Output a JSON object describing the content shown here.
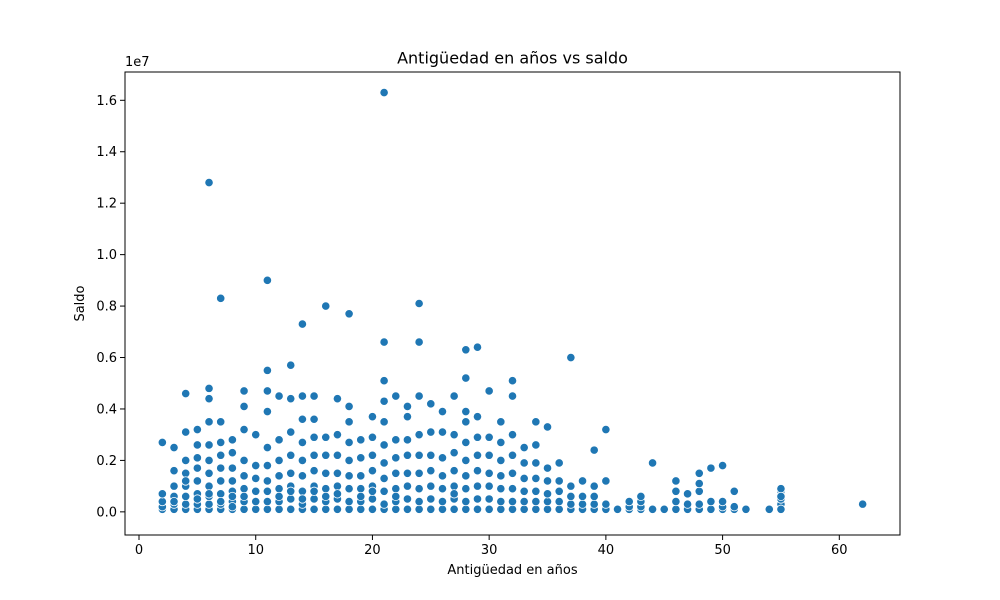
{
  "chart_data": {
    "type": "scatter",
    "title": "Antigüedad en años vs saldo",
    "xlabel": "Antigüedad en años",
    "ylabel": "Saldo",
    "y_offset_label": "1e7",
    "xlim": [
      -1.2,
      65.2
    ],
    "ylim": [
      -0.09,
      1.71
    ],
    "x_ticks": [
      0,
      10,
      20,
      30,
      40,
      50,
      60
    ],
    "x_tick_labels": [
      "0",
      "10",
      "20",
      "30",
      "40",
      "50",
      "60"
    ],
    "y_ticks": [
      0.0,
      0.2,
      0.4,
      0.6,
      0.8,
      1.0,
      1.2,
      1.4,
      1.6
    ],
    "y_tick_labels": [
      "0.0",
      "0.2",
      "0.4",
      "0.6",
      "0.8",
      "1.0",
      "1.2",
      "1.4",
      "1.6"
    ],
    "grid": false,
    "legend": "none",
    "point_color": "#1f77b4",
    "point_edge_color": "#ffffff",
    "series": [
      {
        "x": [
          2,
          2,
          2,
          2,
          2,
          3,
          3,
          3,
          3,
          3,
          3,
          3,
          4,
          4,
          4,
          4,
          4,
          4,
          4,
          4,
          4,
          5,
          5,
          5,
          5,
          5,
          5,
          5,
          5,
          5,
          6,
          6,
          6,
          6,
          6,
          6,
          6,
          6,
          6,
          6,
          6,
          6,
          7,
          7,
          7,
          7,
          7,
          7,
          7,
          7,
          7,
          7,
          8,
          8,
          8,
          8,
          8,
          8,
          8,
          8,
          8,
          9,
          9,
          9,
          9,
          9,
          9,
          9,
          9,
          9,
          10,
          10,
          10,
          10,
          10,
          10,
          11,
          11,
          11,
          11,
          11,
          11,
          11,
          11,
          11,
          11,
          12,
          12,
          12,
          12,
          12,
          12,
          12,
          12,
          13,
          13,
          13,
          13,
          13,
          13,
          13,
          13,
          13,
          14,
          14,
          14,
          14,
          14,
          14,
          14,
          14,
          14,
          14,
          15,
          15,
          15,
          15,
          15,
          15,
          15,
          15,
          15,
          16,
          16,
          16,
          16,
          16,
          16,
          16,
          16,
          17,
          17,
          17,
          17,
          17,
          17,
          17,
          17,
          18,
          18,
          18,
          18,
          18,
          18,
          18,
          18,
          18,
          19,
          19,
          19,
          19,
          19,
          19,
          19,
          20,
          20,
          20,
          20,
          20,
          20,
          20,
          20,
          21,
          21,
          21,
          21,
          21,
          21,
          21,
          21,
          21,
          21,
          21,
          22,
          22,
          22,
          22,
          22,
          22,
          22,
          22,
          23,
          23,
          23,
          23,
          23,
          23,
          23,
          23,
          24,
          24,
          24,
          24,
          24,
          24,
          24,
          24,
          24,
          25,
          25,
          25,
          25,
          25,
          25,
          25,
          26,
          26,
          26,
          26,
          26,
          26,
          26,
          27,
          27,
          27,
          27,
          27,
          27,
          27,
          27,
          28,
          28,
          28,
          28,
          28,
          28,
          28,
          28,
          28,
          28,
          29,
          29,
          29,
          29,
          29,
          29,
          29,
          29,
          30,
          30,
          30,
          30,
          30,
          30,
          30,
          31,
          31,
          31,
          31,
          31,
          31,
          31,
          32,
          32,
          32,
          32,
          32,
          32,
          32,
          32,
          33,
          33,
          33,
          33,
          33,
          33,
          34,
          34,
          34,
          34,
          34,
          34,
          34,
          35,
          35,
          35,
          35,
          35,
          35,
          36,
          36,
          36,
          36,
          36,
          37,
          37,
          37,
          37,
          37,
          38,
          38,
          38,
          38,
          39,
          39,
          39,
          39,
          39,
          40,
          40,
          40,
          40,
          41,
          42,
          42,
          42,
          43,
          43,
          43,
          43,
          44,
          44,
          45,
          46,
          46,
          46,
          46,
          47,
          47,
          47,
          48,
          48,
          48,
          48,
          48,
          49,
          49,
          49,
          50,
          50,
          50,
          50,
          51,
          51,
          51,
          52,
          54,
          55,
          55,
          55,
          55,
          55,
          55,
          55,
          55,
          62
        ],
        "y": [
          0.01,
          0.02,
          0.04,
          0.07,
          0.27,
          0.01,
          0.03,
          0.06,
          0.1,
          0.16,
          0.25,
          0.04,
          0.01,
          0.03,
          0.06,
          0.1,
          0.15,
          0.2,
          0.31,
          0.46,
          0.12,
          0.01,
          0.03,
          0.07,
          0.12,
          0.17,
          0.21,
          0.26,
          0.32,
          0.05,
          0.01,
          0.03,
          0.06,
          0.1,
          0.15,
          0.2,
          0.26,
          0.35,
          0.44,
          0.48,
          1.28,
          0.07,
          0.01,
          0.03,
          0.07,
          0.12,
          0.17,
          0.22,
          0.27,
          0.35,
          0.83,
          0.04,
          0.01,
          0.04,
          0.08,
          0.12,
          0.17,
          0.23,
          0.28,
          0.02,
          0.06,
          0.01,
          0.04,
          0.09,
          0.14,
          0.2,
          0.32,
          0.41,
          0.47,
          0.06,
          0.01,
          0.04,
          0.08,
          0.13,
          0.18,
          0.3,
          0.01,
          0.04,
          0.08,
          0.12,
          0.18,
          0.25,
          0.39,
          0.47,
          0.55,
          0.9,
          0.01,
          0.04,
          0.09,
          0.14,
          0.2,
          0.28,
          0.45,
          0.06,
          0.01,
          0.05,
          0.1,
          0.15,
          0.22,
          0.31,
          0.44,
          0.57,
          0.08,
          0.01,
          0.03,
          0.08,
          0.14,
          0.2,
          0.27,
          0.36,
          0.45,
          0.73,
          0.05,
          0.01,
          0.05,
          0.1,
          0.16,
          0.22,
          0.29,
          0.36,
          0.45,
          0.08,
          0.01,
          0.04,
          0.09,
          0.15,
          0.22,
          0.29,
          0.8,
          0.06,
          0.01,
          0.05,
          0.1,
          0.15,
          0.22,
          0.3,
          0.44,
          0.07,
          0.01,
          0.04,
          0.09,
          0.14,
          0.2,
          0.27,
          0.35,
          0.41,
          0.77,
          0.01,
          0.04,
          0.09,
          0.14,
          0.21,
          0.28,
          0.06,
          0.01,
          0.05,
          0.1,
          0.16,
          0.22,
          0.29,
          0.37,
          0.08,
          0.01,
          0.03,
          0.08,
          0.13,
          0.19,
          0.26,
          0.35,
          0.43,
          0.51,
          0.66,
          1.63,
          0.01,
          0.04,
          0.09,
          0.15,
          0.21,
          0.28,
          0.45,
          0.06,
          0.01,
          0.05,
          0.1,
          0.15,
          0.22,
          0.28,
          0.37,
          0.41,
          0.01,
          0.04,
          0.09,
          0.15,
          0.22,
          0.3,
          0.45,
          0.66,
          0.81,
          0.01,
          0.05,
          0.1,
          0.16,
          0.22,
          0.31,
          0.42,
          0.01,
          0.04,
          0.09,
          0.14,
          0.21,
          0.31,
          0.39,
          0.01,
          0.05,
          0.1,
          0.16,
          0.23,
          0.3,
          0.45,
          0.07,
          0.01,
          0.04,
          0.09,
          0.14,
          0.2,
          0.27,
          0.35,
          0.39,
          0.52,
          0.63,
          0.01,
          0.05,
          0.1,
          0.16,
          0.22,
          0.29,
          0.37,
          0.64,
          0.01,
          0.05,
          0.1,
          0.15,
          0.22,
          0.29,
          0.47,
          0.01,
          0.04,
          0.09,
          0.14,
          0.2,
          0.27,
          0.35,
          0.01,
          0.04,
          0.09,
          0.15,
          0.22,
          0.3,
          0.45,
          0.51,
          0.01,
          0.04,
          0.08,
          0.13,
          0.19,
          0.25,
          0.01,
          0.04,
          0.08,
          0.13,
          0.19,
          0.26,
          0.35,
          0.01,
          0.04,
          0.07,
          0.12,
          0.17,
          0.33,
          0.01,
          0.04,
          0.08,
          0.12,
          0.19,
          0.01,
          0.03,
          0.06,
          0.1,
          0.6,
          0.01,
          0.03,
          0.06,
          0.12,
          0.01,
          0.03,
          0.06,
          0.1,
          0.24,
          0.01,
          0.03,
          0.12,
          0.32,
          0.01,
          0.01,
          0.02,
          0.04,
          0.01,
          0.02,
          0.04,
          0.06,
          0.01,
          0.19,
          0.01,
          0.01,
          0.04,
          0.08,
          0.12,
          0.01,
          0.03,
          0.07,
          0.01,
          0.03,
          0.08,
          0.11,
          0.15,
          0.01,
          0.04,
          0.17,
          0.01,
          0.02,
          0.04,
          0.18,
          0.01,
          0.02,
          0.08,
          0.01,
          0.01,
          0.01,
          0.03,
          0.05,
          0.07,
          0.08,
          0.09,
          0.06,
          0.01,
          0.03
        ]
      }
    ]
  }
}
